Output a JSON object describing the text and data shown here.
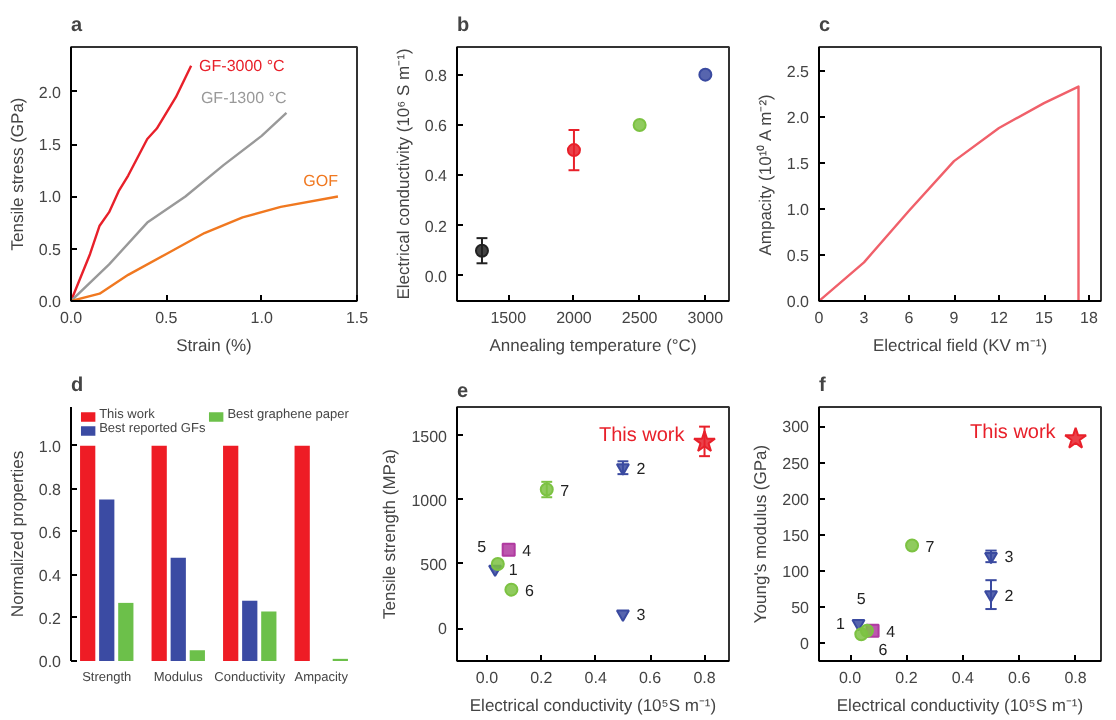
{
  "chart_data": [
    {
      "type": "line",
      "title": "a",
      "xlabel": "Strain (%)",
      "ylabel": "Tensile stress (GPa)",
      "xlim": [
        0,
        1.5
      ],
      "ylim": [
        0,
        2.43
      ],
      "xticks": [
        {
          "value": 0,
          "label": "0.0"
        },
        {
          "value": 0.5,
          "label": "0.5"
        },
        {
          "value": 1,
          "label": "1.0"
        },
        {
          "value": 1.5,
          "label": "1.5"
        }
      ],
      "yticks": [
        {
          "value": 0,
          "label": "0.0"
        },
        {
          "value": 0.5,
          "label": "0.5"
        },
        {
          "value": 1,
          "label": "1.0"
        },
        {
          "value": 1.5,
          "label": "1.5"
        },
        {
          "value": 2,
          "label": "2.0"
        }
      ],
      "grid": false,
      "legend": false,
      "marker": "none",
      "line_style": "solid",
      "series": [
        {
          "name": "GF-3000 °C",
          "color": "#e8202a",
          "x": [
            0,
            0.1,
            0.15,
            0.2,
            0.25,
            0.3,
            0.4,
            0.45,
            0.55,
            0.63
          ],
          "values": [
            0,
            0.45,
            0.72,
            0.85,
            1.05,
            1.2,
            1.55,
            1.65,
            1.95,
            2.25
          ]
        },
        {
          "name": "GF-1300 °C",
          "color": "#999999",
          "x": [
            0,
            0.2,
            0.4,
            0.6,
            0.8,
            1.0,
            1.13
          ],
          "values": [
            0,
            0.35,
            0.75,
            1.0,
            1.3,
            1.58,
            1.8
          ]
        },
        {
          "name": "GOF",
          "color": "#f07820",
          "x": [
            0,
            0.15,
            0.3,
            0.5,
            0.7,
            0.9,
            1.1,
            1.4
          ],
          "values": [
            0,
            0.07,
            0.25,
            0.45,
            0.65,
            0.8,
            0.9,
            1.0
          ]
        }
      ]
    },
    {
      "type": "scatter",
      "title": "b",
      "xlabel": "Annealing temperature (°C)",
      "ylabel": "Electrical conductivity (10⁶ S m⁻¹)",
      "xlim": [
        1110,
        3180
      ],
      "ylim": [
        -0.1,
        0.91
      ],
      "xticks": [
        1500,
        2000,
        2500,
        3000
      ],
      "yticks": [
        {
          "value": 0,
          "label": "0.0"
        },
        {
          "value": 0.2,
          "label": "0.2"
        },
        {
          "value": 0.4,
          "label": "0.4"
        },
        {
          "value": 0.6,
          "label": "0.6"
        },
        {
          "value": 0.8,
          "label": "0.8"
        }
      ],
      "grid": false,
      "marker": "circle",
      "series": [
        {
          "x": [
            1300,
            2000,
            2500,
            3000
          ],
          "values": [
            0.1,
            0.5,
            0.6,
            0.8
          ],
          "colors": [
            "#222222",
            "#e8202a",
            "#7cc242",
            "#3a4aa0"
          ],
          "errors": [
            0.05,
            [
              0.42,
              0.58
            ],
            null,
            null
          ]
        }
      ]
    },
    {
      "type": "line",
      "title": "c",
      "xlabel": "Electrical field (KV m⁻¹)",
      "ylabel": "Ampacity (10¹⁰ A m⁻²)",
      "xlim": [
        0,
        18.8
      ],
      "ylim": [
        0,
        2.76
      ],
      "xticks": [
        0,
        3,
        6,
        9,
        12,
        15,
        18
      ],
      "yticks": [
        {
          "value": 0,
          "label": "0.0"
        },
        {
          "value": 0.5,
          "label": "0.5"
        },
        {
          "value": 1,
          "label": "1.0"
        },
        {
          "value": 1.5,
          "label": "1.5"
        },
        {
          "value": 2,
          "label": "2.0"
        },
        {
          "value": 2.5,
          "label": "2.5"
        }
      ],
      "grid": false,
      "marker": "none",
      "line_style": "solid",
      "series": [
        {
          "color": "#f0606a",
          "x": [
            0,
            3,
            6,
            9,
            12,
            15,
            17.3,
            17.3
          ],
          "values": [
            0,
            0.42,
            0.98,
            1.52,
            1.88,
            2.15,
            2.33,
            0
          ]
        }
      ]
    },
    {
      "type": "bar",
      "title": "d",
      "ylabel": "Normalized properties",
      "categories": [
        "Strength",
        "Modulus",
        "Conductivity",
        "Ampacity"
      ],
      "ylim": [
        0,
        1.18
      ],
      "yticks": [
        {
          "value": 0,
          "label": "0.0"
        },
        {
          "value": 0.2,
          "label": "0.2"
        },
        {
          "value": 0.4,
          "label": "0.4"
        },
        {
          "value": 0.6,
          "label": "0.6"
        },
        {
          "value": 0.8,
          "label": "0.8"
        },
        {
          "value": 1,
          "label": "1.0"
        }
      ],
      "grid": false,
      "legend": "top",
      "series": [
        {
          "name": "This work",
          "color": "#ee1c25",
          "values": [
            1,
            1,
            1,
            1
          ]
        },
        {
          "name": "Best reported GFs",
          "color": "#3b4ba3",
          "values": [
            0.75,
            0.48,
            0.28,
            0
          ]
        },
        {
          "name": "Best graphene paper",
          "color": "#6cc04a",
          "values": [
            0.27,
            0.05,
            0.23,
            0.01
          ]
        }
      ]
    },
    {
      "type": "scatter",
      "title": "e",
      "xlabel": "Electrical conductivity (10⁵S m⁻¹)",
      "ylabel": "Tensile strength (MPa)",
      "xlim": [
        -0.11,
        0.89
      ],
      "ylim": [
        -256,
        1723
      ],
      "xticks": [
        {
          "value": 0,
          "label": "0.0"
        },
        {
          "value": 0.2,
          "label": "0.2"
        },
        {
          "value": 0.4,
          "label": "0.4"
        },
        {
          "value": 0.6,
          "label": "0.6"
        },
        {
          "value": 0.8,
          "label": "0.8"
        }
      ],
      "yticks": [
        0,
        500,
        1000,
        1500
      ],
      "grid": false,
      "series": [
        {
          "color": "#3a4aa0",
          "marker": "triangle",
          "x": [
            0.03,
            0.5,
            0.5
          ],
          "values": [
            460,
            1250,
            110
          ],
          "errors": [
            null,
            50,
            null
          ]
        },
        {
          "color": "#b03aa0",
          "marker": "square",
          "x": [
            0.08
          ],
          "values": [
            610
          ]
        },
        {
          "color": "#7cc242",
          "marker": "circle",
          "x": [
            0.04,
            0.09,
            0.22
          ],
          "values": [
            500,
            300,
            1080
          ],
          "errors": [
            null,
            null,
            60
          ]
        },
        {
          "color": "#e8202a",
          "marker": "star",
          "x": [
            0.8
          ],
          "values": [
            1450
          ],
          "errors": [
            [
              1340,
              1570
            ]
          ]
        }
      ],
      "annotations": [
        {
          "text": "1",
          "x": 0.03,
          "y": 460
        },
        {
          "text": "2",
          "x": 0.5,
          "y": 1250
        },
        {
          "text": "3",
          "x": 0.5,
          "y": 110
        },
        {
          "text": "4",
          "x": 0.08,
          "y": 610
        },
        {
          "text": "5",
          "x": 0.04,
          "y": 500
        },
        {
          "text": "6",
          "x": 0.09,
          "y": 300
        },
        {
          "text": "7",
          "x": 0.22,
          "y": 1080
        },
        {
          "text": "This work",
          "x": 0.8,
          "y": 1450
        }
      ]
    },
    {
      "type": "scatter",
      "title": "f",
      "xlabel": "Electrical conductivity (10⁵S m⁻¹)",
      "ylabel": "Young's modulus (GPa)",
      "xlim": [
        -0.11,
        0.89
      ],
      "ylim": [
        -25,
        327
      ],
      "xticks": [
        {
          "value": 0,
          "label": "0.0"
        },
        {
          "value": 0.2,
          "label": "0.2"
        },
        {
          "value": 0.4,
          "label": "0.4"
        },
        {
          "value": 0.6,
          "label": "0.6"
        },
        {
          "value": 0.8,
          "label": "0.8"
        }
      ],
      "yticks": [
        0,
        50,
        100,
        150,
        200,
        250,
        300
      ],
      "grid": false,
      "series": [
        {
          "color": "#3a4aa0",
          "marker": "triangle",
          "x": [
            0.03,
            0.5,
            0.5
          ],
          "values": [
            27,
            67,
            120
          ],
          "errors": [
            null,
            [
              47,
              87
            ],
            8
          ]
        },
        {
          "color": "#b03aa0",
          "marker": "square",
          "x": [
            0.08
          ],
          "values": [
            17
          ]
        },
        {
          "color": "#7cc242",
          "marker": "circle",
          "x": [
            0.04,
            0.06,
            0.22
          ],
          "values": [
            12,
            17,
            135
          ]
        },
        {
          "color": "#e8202a",
          "marker": "star",
          "x": [
            0.8
          ],
          "values": [
            283
          ]
        }
      ],
      "annotations": [
        {
          "text": "1",
          "x": 0.03,
          "y": 27
        },
        {
          "text": "2",
          "x": 0.5,
          "y": 67
        },
        {
          "text": "3",
          "x": 0.5,
          "y": 120
        },
        {
          "text": "4",
          "x": 0.08,
          "y": 17
        },
        {
          "text": "5",
          "x": 0.04,
          "y": 12
        },
        {
          "text": "6",
          "x": 0.06,
          "y": 17
        },
        {
          "text": "7",
          "x": 0.22,
          "y": 135
        },
        {
          "text": "This work",
          "x": 0.8,
          "y": 283
        }
      ]
    }
  ]
}
